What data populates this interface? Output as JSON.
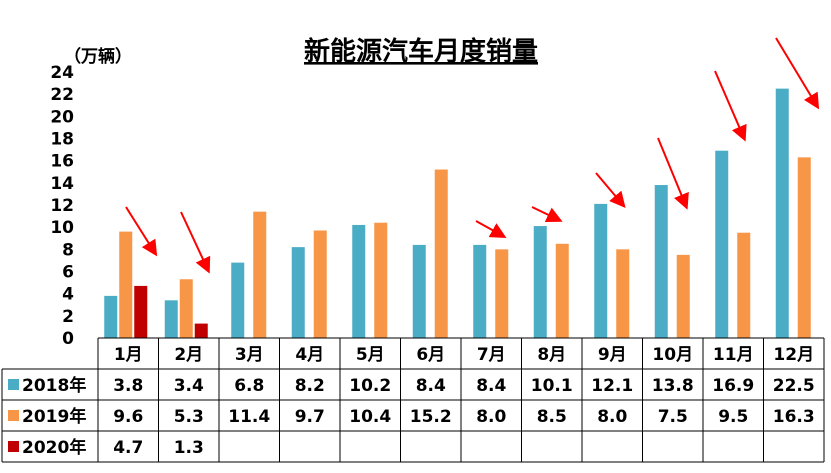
{
  "chart_data": {
    "type": "bar",
    "title": "新能源汽车月度销量",
    "unit_label": "（万辆）",
    "ylim": [
      0,
      24
    ],
    "yticks": [
      "0",
      "2",
      "4",
      "6",
      "8",
      "10",
      "12",
      "14",
      "16",
      "18",
      "20",
      "22",
      "24"
    ],
    "categories": [
      "1月",
      "2月",
      "3月",
      "4月",
      "5月",
      "6月",
      "7月",
      "8月",
      "9月",
      "10月",
      "11月",
      "12月"
    ],
    "series": [
      {
        "name": "2018年",
        "color": "#4bacc6",
        "values": [
          3.8,
          3.4,
          6.8,
          8.2,
          10.2,
          8.4,
          8.4,
          10.1,
          12.1,
          13.8,
          16.9,
          22.5
        ],
        "labels": [
          "3.8",
          "3.4",
          "6.8",
          "8.2",
          "10.2",
          "8.4",
          "8.4",
          "10.1",
          "12.1",
          "13.8",
          "16.9",
          "22.5"
        ]
      },
      {
        "name": "2019年",
        "color": "#f79646",
        "values": [
          9.6,
          5.3,
          11.4,
          9.7,
          10.4,
          15.2,
          8.0,
          8.5,
          8.0,
          7.5,
          9.5,
          16.3
        ],
        "labels": [
          "9.6",
          "5.3",
          "11.4",
          "9.7",
          "10.4",
          "15.2",
          "8.0",
          "8.5",
          "8.0",
          "7.5",
          "9.5",
          "16.3"
        ]
      },
      {
        "name": "2020年",
        "color": "#c00000",
        "values": [
          4.7,
          1.3,
          null,
          null,
          null,
          null,
          null,
          null,
          null,
          null,
          null,
          null
        ],
        "labels": [
          "4.7",
          "1.3",
          "",
          "",
          "",
          "",
          "",
          "",
          "",
          "",
          "",
          ""
        ]
      }
    ],
    "data_table": true,
    "annotations": "red arrows pointing down-right in each month from 1月,2月 and 7月-12月",
    "arrow_color": "#ff0000"
  }
}
